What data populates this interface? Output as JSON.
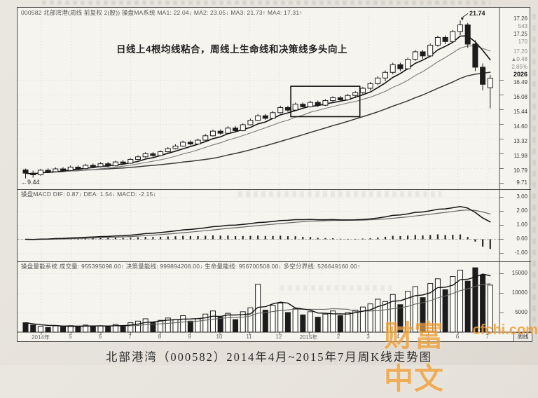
{
  "page": {
    "caption": "北部港湾（000582）2014年4月~2015年7月周K线走势图",
    "watermark": {
      "cn": "财富中文",
      "en": "cfchi.com",
      "color": "#ef9f35"
    }
  },
  "main_panel": {
    "header": "000582 北部湾港(周线 前复权 2(股)) 操盘MA系统 MA1: 22.04↓ MA2: 23.05↓ MA3: 21.73↑ MA4: 17.31↑",
    "annotation": "日线上4根均线粘合，周线上生命线和决策线多头向上",
    "high_label": "21.74",
    "low_label": "←9.44",
    "quote_panel": {
      "values": [
        "17.26",
        "543",
        "17.25",
        "170",
        "17.20",
        "▲0.48",
        "2.85%",
        "2026"
      ]
    },
    "y_axis": [
      "16.49",
      "16.08",
      "15.44",
      "14.60",
      "13.32",
      "11.98",
      "10.79",
      "9.71"
    ]
  },
  "macd_panel": {
    "header": "操盘MACD DIF: 0.87↓ DEA: 1.54↓ MACD: -2.15↓",
    "y_axis": [
      "3.00",
      "2.00",
      "1.00",
      "0.00",
      "-1.00"
    ]
  },
  "volume_panel": {
    "header": "操盘量能系统 成交量: 955395098.00↑ 决策量能线: 999894208.00↓ 生命量能线: 956700508.00↓ 多空分界线: 526649160.00↑",
    "y_axis": [
      "15000",
      "10000",
      "5000"
    ]
  },
  "x_axis": {
    "labels": [
      "2014年",
      "5",
      "6",
      "7",
      "8",
      "9",
      "10",
      "11",
      "12",
      "2015年",
      "2",
      "3",
      "4",
      "5",
      "6",
      "7"
    ],
    "period_label": "周线"
  },
  "chart_data": {
    "type": "candlestick",
    "title": "北部港湾（000582）周K线 2014-04 ~ 2015-07",
    "price_high": 21.74,
    "price_low": 9.44,
    "last_price": 17.25,
    "change": "+0.48 (+2.85%)",
    "ma_periods": [
      5,
      10,
      26
    ],
    "volume_ma_periods": [
      5,
      13
    ],
    "macd_last": {
      "dif": 0.87,
      "dea": 1.54,
      "macd": -2.15
    },
    "consolidation_box": {
      "week_start": 36,
      "week_end": 44,
      "price_top": 16.62,
      "price_bottom": 14.25
    },
    "candles": [
      [
        10.1,
        10.2,
        9.44,
        9.85
      ],
      [
        9.85,
        10.05,
        9.5,
        9.72
      ],
      [
        9.72,
        10.18,
        9.65,
        10.08
      ],
      [
        10.08,
        10.22,
        9.86,
        9.96
      ],
      [
        9.96,
        10.3,
        9.9,
        10.18
      ],
      [
        10.18,
        10.32,
        9.98,
        10.06
      ],
      [
        10.06,
        10.44,
        10.0,
        10.32
      ],
      [
        10.32,
        10.45,
        10.1,
        10.2
      ],
      [
        10.2,
        10.58,
        10.14,
        10.46
      ],
      [
        10.46,
        10.6,
        10.26,
        10.36
      ],
      [
        10.36,
        10.7,
        10.3,
        10.58
      ],
      [
        10.58,
        10.72,
        10.32,
        10.42
      ],
      [
        10.42,
        10.82,
        10.38,
        10.72
      ],
      [
        10.72,
        10.86,
        10.5,
        10.62
      ],
      [
        10.62,
        11.02,
        10.58,
        10.92
      ],
      [
        10.92,
        11.24,
        10.86,
        11.12
      ],
      [
        11.12,
        11.48,
        11.04,
        11.36
      ],
      [
        11.36,
        11.5,
        11.1,
        11.22
      ],
      [
        11.22,
        11.62,
        11.16,
        11.52
      ],
      [
        11.52,
        11.88,
        11.46,
        11.76
      ],
      [
        11.76,
        12.1,
        11.7,
        11.96
      ],
      [
        11.96,
        12.38,
        11.9,
        12.26
      ],
      [
        12.26,
        12.4,
        12.0,
        12.12
      ],
      [
        12.12,
        12.54,
        12.06,
        12.42
      ],
      [
        12.42,
        12.9,
        12.36,
        12.76
      ],
      [
        12.76,
        13.24,
        12.7,
        13.12
      ],
      [
        13.12,
        13.26,
        12.84,
        12.96
      ],
      [
        12.96,
        13.5,
        12.9,
        13.36
      ],
      [
        13.36,
        13.52,
        13.02,
        13.16
      ],
      [
        13.16,
        13.74,
        13.1,
        13.62
      ],
      [
        13.62,
        14.1,
        13.56,
        13.96
      ],
      [
        13.96,
        14.45,
        13.9,
        14.32
      ],
      [
        14.32,
        14.46,
        14.0,
        14.12
      ],
      [
        14.12,
        14.7,
        14.06,
        14.56
      ],
      [
        14.56,
        15.1,
        14.5,
        14.96
      ],
      [
        14.96,
        15.1,
        14.62,
        14.76
      ],
      [
        14.76,
        15.35,
        14.7,
        15.22
      ],
      [
        15.22,
        15.36,
        14.9,
        15.02
      ],
      [
        15.02,
        15.48,
        14.96,
        15.36
      ],
      [
        15.36,
        15.5,
        15.02,
        15.14
      ],
      [
        15.14,
        15.62,
        15.08,
        15.5
      ],
      [
        15.5,
        15.84,
        15.3,
        15.72
      ],
      [
        15.72,
        15.86,
        15.42,
        15.56
      ],
      [
        15.56,
        16.02,
        15.5,
        15.9
      ],
      [
        15.9,
        16.24,
        15.7,
        16.12
      ],
      [
        16.12,
        16.58,
        16.0,
        16.46
      ],
      [
        16.46,
        16.95,
        16.3,
        16.82
      ],
      [
        16.82,
        17.4,
        16.7,
        17.26
      ],
      [
        17.26,
        17.85,
        17.0,
        17.7
      ],
      [
        17.7,
        18.45,
        17.55,
        18.3
      ],
      [
        18.3,
        18.45,
        17.8,
        17.98
      ],
      [
        17.98,
        18.85,
        17.9,
        18.72
      ],
      [
        18.72,
        19.45,
        18.6,
        19.3
      ],
      [
        19.3,
        19.45,
        18.75,
        18.98
      ],
      [
        18.98,
        19.95,
        18.9,
        19.82
      ],
      [
        19.82,
        20.55,
        19.7,
        20.42
      ],
      [
        20.42,
        20.58,
        19.9,
        20.1
      ],
      [
        20.1,
        21.0,
        20.0,
        20.88
      ],
      [
        20.88,
        21.74,
        20.6,
        21.4
      ],
      [
        21.4,
        21.55,
        19.6,
        19.9
      ],
      [
        19.9,
        20.2,
        17.8,
        18.1
      ],
      [
        18.1,
        18.4,
        16.3,
        16.77
      ],
      [
        16.5,
        17.5,
        14.9,
        17.25
      ]
    ],
    "volumes": [
      2400,
      1800,
      1500,
      1200,
      1600,
      1300,
      1700,
      1400,
      1800,
      1500,
      1600,
      1400,
      2000,
      1700,
      2400,
      2800,
      3400,
      2600,
      3000,
      3600,
      3200,
      4200,
      2800,
      3400,
      4600,
      5400,
      3800,
      4800,
      3200,
      5200,
      6200,
      12200,
      5600,
      6800,
      7400,
      5000,
      6000,
      4400,
      5200,
      3800,
      4600,
      5400,
      4200,
      5000,
      5600,
      6400,
      7200,
      8400,
      7800,
      9600,
      7000,
      10400,
      11600,
      8800,
      12400,
      13600,
      10800,
      14200,
      15800,
      13000,
      16400,
      14600,
      12000
    ]
  }
}
